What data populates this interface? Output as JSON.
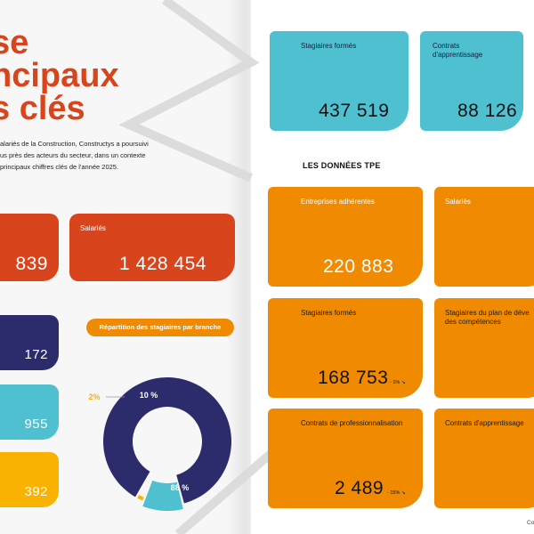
{
  "headline": [
    "se",
    "ncipaux",
    "s clés"
  ],
  "intro": [
    "alariés de la Construction, Constructys a poursuivi",
    "us près des acteurs du secteur, dans un contexte",
    "principaux chiffres clés de l'année 2025."
  ],
  "left_cards": {
    "red_a": {
      "value": "839"
    },
    "red_b": {
      "label": "Salariés",
      "value": "1 428 454"
    },
    "navy": {
      "value": "172"
    },
    "cyan": {
      "value": "955"
    },
    "yellow": {
      "value": "392"
    }
  },
  "chart_title": "Répartition des stagiaires par branche",
  "chart_data": {
    "type": "pie",
    "title": "Répartition des stagiaires par branche",
    "values": [
      88,
      10,
      2
    ],
    "labels": [
      "88 %",
      "10 %",
      "2%"
    ],
    "colors": [
      "#2c2c6c",
      "#4fc0d0",
      "#f9b200"
    ]
  },
  "right_top": [
    {
      "label": [
        "Stagiaires formés"
      ],
      "value": "437 519"
    },
    {
      "label": [
        "Contrats",
        "d'apprentissage"
      ],
      "value": "88 126"
    }
  ],
  "tpe_title": "LES DONNÉES TPE",
  "tpe_cards": [
    {
      "label": [
        "Entreprises adhérentes"
      ],
      "value": "220 883",
      "trend": ""
    },
    {
      "label": [
        "Salariés"
      ],
      "value": "",
      "trend": ""
    },
    {
      "label": [
        "Stagiaires formés"
      ],
      "value": "168 753",
      "trend": "- 1% ↘"
    },
    {
      "label": [
        "Stagiaires du plan de déve",
        "des compétences"
      ],
      "value": "",
      "trend": ""
    },
    {
      "label": [
        "Contrats de professionnalisation"
      ],
      "value": "2 489",
      "trend": "- 15% ↘"
    },
    {
      "label": [
        "Contrats d'apprentissage"
      ],
      "value": "",
      "trend": ""
    }
  ],
  "footer": "Co",
  "colors": {
    "red": "#d8451d",
    "navy": "#2c2c6c",
    "cyan": "#4fc0d0",
    "yellow": "#f9b200",
    "orange": "#f08a00"
  }
}
